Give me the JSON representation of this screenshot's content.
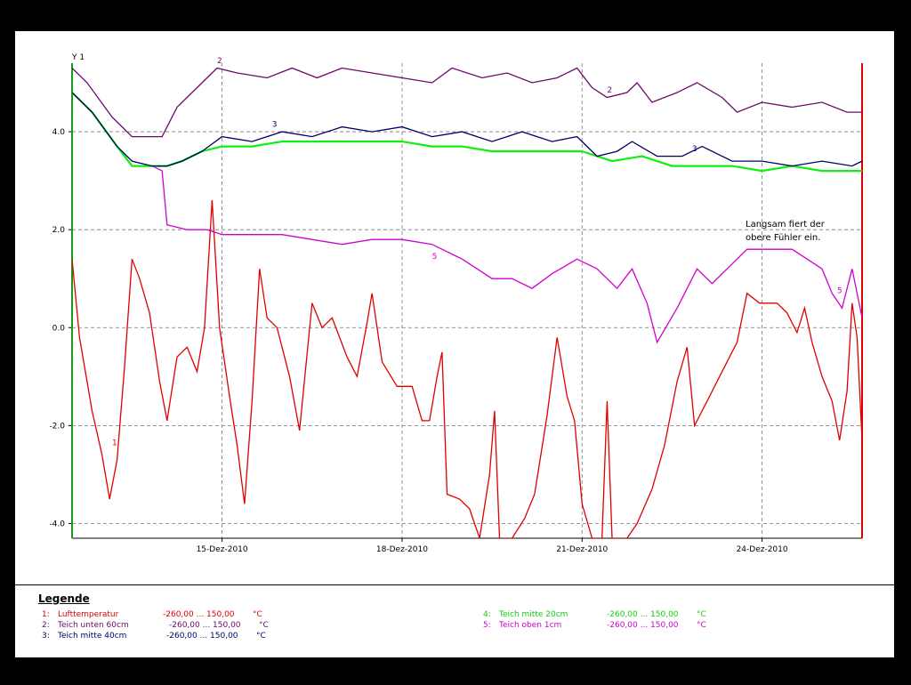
{
  "chart_data": {
    "type": "line",
    "ylabel": "Y 1",
    "ylim": [
      -4.3,
      5.4
    ],
    "xlim": [
      "2010-12-12T12:00",
      "2010-12-25T16:00"
    ],
    "yticks": [
      4.0,
      2.0,
      0.0,
      -2.0,
      -4.0
    ],
    "ytick_labels": [
      "4.0",
      "2.0",
      "0.0",
      "-2.0",
      "-4.0"
    ],
    "xticks": [
      "2010-12-15",
      "2010-12-18",
      "2010-12-21",
      "2010-12-24"
    ],
    "xtick_labels": [
      "15-Dez-2010",
      "18-Dez-2010",
      "21-Dez-2010",
      "24-Dez-2010"
    ],
    "grid": true,
    "annotation": [
      "Langsam fiert der",
      "obere Fühler ein."
    ],
    "series": [
      {
        "id": "1",
        "color": "#e00000",
        "points": [
          [
            "2010-12-12T12:00",
            1.4
          ],
          [
            "2010-12-12T15:00",
            -0.2
          ],
          [
            "2010-12-12T20:00",
            -1.7
          ],
          [
            "2010-12-13T00:00",
            -2.6
          ],
          [
            "2010-12-13T03:00",
            -3.5
          ],
          [
            "2010-12-13T06:00",
            -2.7
          ],
          [
            "2010-12-13T09:00",
            -0.8
          ],
          [
            "2010-12-13T12:00",
            1.4
          ],
          [
            "2010-12-13T15:00",
            1.0
          ],
          [
            "2010-12-13T19:00",
            0.3
          ],
          [
            "2010-12-13T23:00",
            -1.1
          ],
          [
            "2010-12-14T02:00",
            -1.9
          ],
          [
            "2010-12-14T06:00",
            -0.6
          ],
          [
            "2010-12-14T10:00",
            -0.4
          ],
          [
            "2010-12-14T14:00",
            -0.9
          ],
          [
            "2010-12-14T17:00",
            0.0
          ],
          [
            "2010-12-14T20:00",
            2.6
          ],
          [
            "2010-12-14T23:00",
            0.0
          ],
          [
            "2010-12-15T03:00",
            -1.4
          ],
          [
            "2010-12-15T06:00",
            -2.4
          ],
          [
            "2010-12-15T09:00",
            -3.6
          ],
          [
            "2010-12-15T12:00",
            -1.5
          ],
          [
            "2010-12-15T15:00",
            1.2
          ],
          [
            "2010-12-15T18:00",
            0.2
          ],
          [
            "2010-12-15T22:00",
            0.0
          ],
          [
            "2010-12-16T03:00",
            -1.0
          ],
          [
            "2010-12-16T07:00",
            -2.1
          ],
          [
            "2010-12-16T12:00",
            0.5
          ],
          [
            "2010-12-16T16:00",
            0.0
          ],
          [
            "2010-12-16T20:00",
            0.2
          ],
          [
            "2010-12-17T02:00",
            -0.6
          ],
          [
            "2010-12-17T06:00",
            -1.0
          ],
          [
            "2010-12-17T10:00",
            0.1
          ],
          [
            "2010-12-17T12:00",
            0.7
          ],
          [
            "2010-12-17T16:00",
            -0.7
          ],
          [
            "2010-12-17T22:00",
            -1.2
          ],
          [
            "2010-12-18T04:00",
            -1.2
          ],
          [
            "2010-12-18T08:00",
            -1.9
          ],
          [
            "2010-12-18T11:00",
            -1.9
          ],
          [
            "2010-12-18T14:00",
            -1.0
          ],
          [
            "2010-12-18T16:00",
            -0.5
          ],
          [
            "2010-12-18T18:00",
            -3.4
          ],
          [
            "2010-12-18T23:00",
            -3.5
          ],
          [
            "2010-12-19T03:00",
            -3.7
          ],
          [
            "2010-12-19T07:00",
            -4.3
          ],
          [
            "2010-12-19T11:00",
            -3.0
          ],
          [
            "2010-12-19T13:00",
            -1.7
          ],
          [
            "2010-12-19T15:00",
            -4.3
          ],
          [
            "2010-12-19T20:00",
            -4.3
          ],
          [
            "2010-12-20T01:00",
            -3.9
          ],
          [
            "2010-12-20T05:00",
            -3.4
          ],
          [
            "2010-12-20T10:00",
            -1.8
          ],
          [
            "2010-12-20T14:00",
            -0.2
          ],
          [
            "2010-12-20T18:00",
            -1.4
          ],
          [
            "2010-12-20T21:00",
            -1.9
          ],
          [
            "2010-12-21T00:00",
            -3.6
          ],
          [
            "2010-12-21T04:00",
            -4.3
          ],
          [
            "2010-12-21T08:00",
            -4.3
          ],
          [
            "2010-12-21T10:00",
            -1.5
          ],
          [
            "2010-12-21T12:00",
            -4.3
          ],
          [
            "2010-12-21T18:00",
            -4.3
          ],
          [
            "2010-12-21T22:00",
            -4.0
          ],
          [
            "2010-12-22T04:00",
            -3.3
          ],
          [
            "2010-12-22T09:00",
            -2.4
          ],
          [
            "2010-12-22T14:00",
            -1.1
          ],
          [
            "2010-12-22T18:00",
            -0.4
          ],
          [
            "2010-12-22T21:00",
            -2.0
          ],
          [
            "2010-12-23T02:00",
            -1.5
          ],
          [
            "2010-12-23T08:00",
            -0.9
          ],
          [
            "2010-12-23T14:00",
            -0.3
          ],
          [
            "2010-12-23T18:00",
            0.7
          ],
          [
            "2010-12-23T23:00",
            0.5
          ],
          [
            "2010-12-24T06:00",
            0.5
          ],
          [
            "2010-12-24T10:00",
            0.3
          ],
          [
            "2010-12-24T14:00",
            -0.1
          ],
          [
            "2010-12-24T17:00",
            0.4
          ],
          [
            "2010-12-24T20:00",
            -0.3
          ],
          [
            "2010-12-25T00:00",
            -1.0
          ],
          [
            "2010-12-25T04:00",
            -1.5
          ],
          [
            "2010-12-25T07:00",
            -2.3
          ],
          [
            "2010-12-25T10:00",
            -1.3
          ],
          [
            "2010-12-25T12:00",
            0.5
          ],
          [
            "2010-12-25T14:00",
            -0.2
          ],
          [
            "2010-12-25T16:00",
            -2.3
          ]
        ]
      },
      {
        "id": "2",
        "color": "#6a0a6a",
        "points": [
          [
            "2010-12-12T12:00",
            5.3
          ],
          [
            "2010-12-12T18:00",
            5.0
          ],
          [
            "2010-12-13T04:00",
            4.3
          ],
          [
            "2010-12-13T12:00",
            3.9
          ],
          [
            "2010-12-14T00:00",
            3.9
          ],
          [
            "2010-12-14T06:00",
            4.5
          ],
          [
            "2010-12-14T14:00",
            4.9
          ],
          [
            "2010-12-14T22:00",
            5.3
          ],
          [
            "2010-12-15T06:00",
            5.2
          ],
          [
            "2010-12-15T18:00",
            5.1
          ],
          [
            "2010-12-16T04:00",
            5.3
          ],
          [
            "2010-12-16T14:00",
            5.1
          ],
          [
            "2010-12-17T00:00",
            5.3
          ],
          [
            "2010-12-17T12:00",
            5.2
          ],
          [
            "2010-12-18T00:00",
            5.1
          ],
          [
            "2010-12-18T12:00",
            5.0
          ],
          [
            "2010-12-18T20:00",
            5.3
          ],
          [
            "2010-12-19T08:00",
            5.1
          ],
          [
            "2010-12-19T18:00",
            5.2
          ],
          [
            "2010-12-20T04:00",
            5.0
          ],
          [
            "2010-12-20T14:00",
            5.1
          ],
          [
            "2010-12-20T22:00",
            5.3
          ],
          [
            "2010-12-21T04:00",
            4.9
          ],
          [
            "2010-12-21T10:00",
            4.7
          ],
          [
            "2010-12-21T18:00",
            4.8
          ],
          [
            "2010-12-21T22:00",
            5.0
          ],
          [
            "2010-12-22T04:00",
            4.6
          ],
          [
            "2010-12-22T14:00",
            4.8
          ],
          [
            "2010-12-22T22:00",
            5.0
          ],
          [
            "2010-12-23T08:00",
            4.7
          ],
          [
            "2010-12-23T14:00",
            4.4
          ],
          [
            "2010-12-24T00:00",
            4.6
          ],
          [
            "2010-12-24T12:00",
            4.5
          ],
          [
            "2010-12-25T00:00",
            4.6
          ],
          [
            "2010-12-25T10:00",
            4.4
          ],
          [
            "2010-12-25T16:00",
            4.4
          ]
        ]
      },
      {
        "id": "3",
        "color": "#000066",
        "points": [
          [
            "2010-12-12T12:00",
            4.8
          ],
          [
            "2010-12-12T20:00",
            4.4
          ],
          [
            "2010-12-13T06:00",
            3.7
          ],
          [
            "2010-12-13T12:00",
            3.4
          ],
          [
            "2010-12-13T20:00",
            3.3
          ],
          [
            "2010-12-14T02:00",
            3.3
          ],
          [
            "2010-12-14T08:00",
            3.4
          ],
          [
            "2010-12-14T16:00",
            3.6
          ],
          [
            "2010-12-15T00:00",
            3.9
          ],
          [
            "2010-12-15T12:00",
            3.8
          ],
          [
            "2010-12-16T00:00",
            4.0
          ],
          [
            "2010-12-16T12:00",
            3.9
          ],
          [
            "2010-12-17T00:00",
            4.1
          ],
          [
            "2010-12-17T12:00",
            4.0
          ],
          [
            "2010-12-18T00:00",
            4.1
          ],
          [
            "2010-12-18T12:00",
            3.9
          ],
          [
            "2010-12-19T00:00",
            4.0
          ],
          [
            "2010-12-19T12:00",
            3.8
          ],
          [
            "2010-12-20T00:00",
            4.0
          ],
          [
            "2010-12-20T12:00",
            3.8
          ],
          [
            "2010-12-20T22:00",
            3.9
          ],
          [
            "2010-12-21T06:00",
            3.5
          ],
          [
            "2010-12-21T14:00",
            3.6
          ],
          [
            "2010-12-21T20:00",
            3.8
          ],
          [
            "2010-12-22T06:00",
            3.5
          ],
          [
            "2010-12-22T16:00",
            3.5
          ],
          [
            "2010-12-23T00:00",
            3.7
          ],
          [
            "2010-12-23T12:00",
            3.4
          ],
          [
            "2010-12-24T00:00",
            3.4
          ],
          [
            "2010-12-24T12:00",
            3.3
          ],
          [
            "2010-12-25T00:00",
            3.4
          ],
          [
            "2010-12-25T12:00",
            3.3
          ],
          [
            "2010-12-25T16:00",
            3.4
          ]
        ]
      },
      {
        "id": "4",
        "color": "#11ee11",
        "points": [
          [
            "2010-12-12T12:00",
            4.8
          ],
          [
            "2010-12-12T20:00",
            4.4
          ],
          [
            "2010-12-13T06:00",
            3.7
          ],
          [
            "2010-12-13T12:00",
            3.3
          ],
          [
            "2010-12-13T20:00",
            3.3
          ],
          [
            "2010-12-14T02:00",
            3.3
          ],
          [
            "2010-12-14T08:00",
            3.4
          ],
          [
            "2010-12-14T16:00",
            3.6
          ],
          [
            "2010-12-15T00:00",
            3.7
          ],
          [
            "2010-12-15T12:00",
            3.7
          ],
          [
            "2010-12-16T00:00",
            3.8
          ],
          [
            "2010-12-16T12:00",
            3.8
          ],
          [
            "2010-12-17T00:00",
            3.8
          ],
          [
            "2010-12-17T12:00",
            3.8
          ],
          [
            "2010-12-18T00:00",
            3.8
          ],
          [
            "2010-12-18T12:00",
            3.7
          ],
          [
            "2010-12-19T00:00",
            3.7
          ],
          [
            "2010-12-19T12:00",
            3.6
          ],
          [
            "2010-12-20T00:00",
            3.6
          ],
          [
            "2010-12-20T12:00",
            3.6
          ],
          [
            "2010-12-21T00:00",
            3.6
          ],
          [
            "2010-12-21T12:00",
            3.4
          ],
          [
            "2010-12-22T00:00",
            3.5
          ],
          [
            "2010-12-22T12:00",
            3.3
          ],
          [
            "2010-12-23T00:00",
            3.3
          ],
          [
            "2010-12-23T12:00",
            3.3
          ],
          [
            "2010-12-24T00:00",
            3.2
          ],
          [
            "2010-12-24T12:00",
            3.3
          ],
          [
            "2010-12-25T00:00",
            3.2
          ],
          [
            "2010-12-25T12:00",
            3.2
          ],
          [
            "2010-12-25T16:00",
            3.2
          ]
        ]
      },
      {
        "id": "5",
        "color": "#d000d0",
        "points": [
          [
            "2010-12-12T12:00",
            4.8
          ],
          [
            "2010-12-12T20:00",
            4.4
          ],
          [
            "2010-12-13T06:00",
            3.7
          ],
          [
            "2010-12-13T12:00",
            3.3
          ],
          [
            "2010-12-13T20:00",
            3.3
          ],
          [
            "2010-12-14T00:00",
            3.2
          ],
          [
            "2010-12-14T02:00",
            2.1
          ],
          [
            "2010-12-14T10:00",
            2.0
          ],
          [
            "2010-12-14T18:00",
            2.0
          ],
          [
            "2010-12-15T00:00",
            1.9
          ],
          [
            "2010-12-15T12:00",
            1.9
          ],
          [
            "2010-12-16T00:00",
            1.9
          ],
          [
            "2010-12-16T12:00",
            1.8
          ],
          [
            "2010-12-17T00:00",
            1.7
          ],
          [
            "2010-12-17T12:00",
            1.8
          ],
          [
            "2010-12-18T00:00",
            1.8
          ],
          [
            "2010-12-18T12:00",
            1.7
          ],
          [
            "2010-12-19T00:00",
            1.4
          ],
          [
            "2010-12-19T12:00",
            1.0
          ],
          [
            "2010-12-19T20:00",
            1.0
          ],
          [
            "2010-12-20T04:00",
            0.8
          ],
          [
            "2010-12-20T12:00",
            1.1
          ],
          [
            "2010-12-20T22:00",
            1.4
          ],
          [
            "2010-12-21T06:00",
            1.2
          ],
          [
            "2010-12-21T14:00",
            0.8
          ],
          [
            "2010-12-21T20:00",
            1.2
          ],
          [
            "2010-12-22T02:00",
            0.5
          ],
          [
            "2010-12-22T06:00",
            -0.3
          ],
          [
            "2010-12-22T14:00",
            0.4
          ],
          [
            "2010-12-22T22:00",
            1.2
          ],
          [
            "2010-12-23T04:00",
            0.9
          ],
          [
            "2010-12-23T12:00",
            1.3
          ],
          [
            "2010-12-23T18:00",
            1.6
          ],
          [
            "2010-12-24T00:00",
            1.6
          ],
          [
            "2010-12-24T06:00",
            1.6
          ],
          [
            "2010-12-24T12:00",
            1.6
          ],
          [
            "2010-12-24T18:00",
            1.4
          ],
          [
            "2010-12-25T00:00",
            1.2
          ],
          [
            "2010-12-25T04:00",
            0.7
          ],
          [
            "2010-12-25T08:00",
            0.4
          ],
          [
            "2010-12-25T12:00",
            1.2
          ],
          [
            "2010-12-25T16:00",
            0.2
          ]
        ]
      }
    ],
    "series_labels": [
      {
        "series": "1",
        "text": "1",
        "at": [
          "2010-12-13T04:00",
          -2.4
        ]
      },
      {
        "series": "2",
        "text": "2",
        "at": [
          "2010-12-14T22:00",
          5.4
        ]
      },
      {
        "series": "2",
        "text": "2",
        "at": [
          "2010-12-21T10:00",
          4.8
        ]
      },
      {
        "series": "3",
        "text": "3",
        "at": [
          "2010-12-15T20:00",
          4.1
        ]
      },
      {
        "series": "3",
        "text": "3",
        "at": [
          "2010-12-22T20:00",
          3.6
        ]
      },
      {
        "series": "5",
        "text": "5",
        "at": [
          "2010-12-18T12:00",
          1.4
        ]
      },
      {
        "series": "5",
        "text": "5",
        "at": [
          "2010-12-25T06:00",
          0.7
        ]
      }
    ]
  },
  "legend": {
    "title": "Legende",
    "entries": [
      {
        "num": "1:",
        "name": "Lufttemperatur",
        "range": "-260,00 ... 150,00",
        "unit": "°C",
        "color": "#e00000"
      },
      {
        "num": "2:",
        "name": "Teich unten 60cm",
        "range": "-260,00 ... 150,00",
        "unit": "°C",
        "color": "#6a0a6a"
      },
      {
        "num": "3:",
        "name": "Teich mitte 40cm",
        "range": "-260,00 ... 150,00",
        "unit": "°C",
        "color": "#000066"
      },
      {
        "num": "4:",
        "name": "Teich mitte 20cm",
        "range": "-260,00 ... 150,00",
        "unit": "°C",
        "color": "#11cc11"
      },
      {
        "num": "5:",
        "name": "Teich oben 1cm",
        "range": "-260,00 ... 150,00",
        "unit": "°C",
        "color": "#d000d0"
      }
    ]
  }
}
